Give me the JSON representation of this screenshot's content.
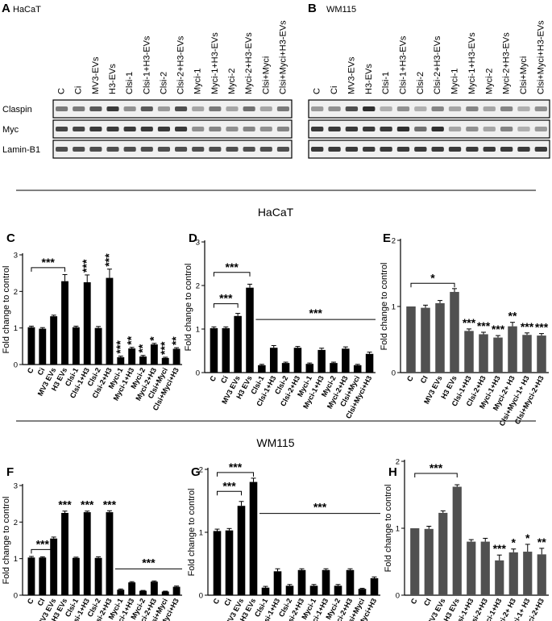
{
  "blots": {
    "A": {
      "panel_label": "A",
      "cell_line": "HaCaT",
      "lanes": [
        "C",
        "Ci",
        "MV3-EVs",
        "H3-EVs",
        "Clsi-1",
        "Clsi-1+H3-EVs",
        "Clsi-2",
        "Clsi-2+H3-EVs",
        "Myci-1",
        "Myci-1+H3-EVs",
        "Myci-2",
        "Myci-2+H3-EVs",
        "Clsi+Myci",
        "Clsi+Myci+H3-EVs"
      ],
      "rows": [
        "Claspin",
        "Myc",
        "Lamin-B1"
      ]
    },
    "B": {
      "panel_label": "B",
      "cell_line": "WM115",
      "lanes": [
        "C",
        "Ci",
        "MV3-EVs",
        "H3-EVs",
        "Clsi-1",
        "Clsi-1+H3-EVs",
        "Clsi-2",
        "Clsi-2+H3-EVs",
        "Myci-1",
        "Myci-1+H3-EVs",
        "Myci-2",
        "Myci-2+H3-EVs",
        "Clsi+Myci",
        "Clsi+Myci+H3-EVs"
      ]
    }
  },
  "sections": {
    "hacat": "HaCaT",
    "wm115": "WM115"
  },
  "colors": {
    "black_bar": "#000000",
    "gray_bar": "#505050",
    "blot_bg": "#f0f0f0",
    "band": "#1a1a1a"
  },
  "chart_data": [
    {
      "panel_label": "C",
      "type": "bar",
      "bar_color": "black",
      "ylabel": "Fold change to control",
      "ylim": [
        0,
        3
      ],
      "yticks": [
        0,
        1,
        2,
        3
      ],
      "categories": [
        "C",
        "Ci",
        "MV3 EVs",
        "H3 EVs",
        "Clsi-1",
        "Clsi-1+H3",
        "Clsi-2",
        "Clsi-2+H3",
        "Myci-1",
        "Myci-1+H3",
        "Myci-2",
        "Myci-2+H3",
        "Clsi+Myci",
        "Clsi+Myci+H3"
      ],
      "values": [
        1.02,
        0.98,
        1.32,
        2.28,
        1.02,
        2.25,
        1.0,
        2.37,
        0.2,
        0.44,
        0.22,
        0.55,
        0.18,
        0.43
      ],
      "errors": [
        0.03,
        0.03,
        0.03,
        0.18,
        0.03,
        0.2,
        0.04,
        0.24,
        0.03,
        0.03,
        0.03,
        0.03,
        0.02,
        0.03
      ],
      "bracket": {
        "from": 0,
        "to": 3,
        "label": "***",
        "y": 2.65
      },
      "stars": [
        {
          "i": 5,
          "label": "***"
        },
        {
          "i": 7,
          "label": "***"
        },
        {
          "i": 8,
          "label": "***"
        },
        {
          "i": 9,
          "label": "**"
        },
        {
          "i": 10,
          "label": "**"
        },
        {
          "i": 11,
          "label": "*"
        },
        {
          "i": 12,
          "label": "***"
        },
        {
          "i": 13,
          "label": "**"
        }
      ],
      "line": null
    },
    {
      "panel_label": "D",
      "type": "bar",
      "bar_color": "black",
      "ylabel": "Fold change to control",
      "ylim": [
        0,
        3
      ],
      "yticks": [
        0,
        1,
        2,
        3
      ],
      "categories": [
        "C",
        "Ci",
        "MV3 EVs",
        "H3 EVs",
        "Clsi-1",
        "Clsi-1+H3",
        "Clsi-2",
        "Clsi-2+H3",
        "Myci-1",
        "Myci-1+H3",
        "Myci-2",
        "Myci-2+H3",
        "Clsi+Myci",
        "Clsi+Myci+H3"
      ],
      "values": [
        1.02,
        1.02,
        1.3,
        1.95,
        0.17,
        0.57,
        0.22,
        0.57,
        0.2,
        0.52,
        0.22,
        0.55,
        0.17,
        0.43
      ],
      "errors": [
        0.03,
        0.03,
        0.06,
        0.08,
        0.02,
        0.05,
        0.02,
        0.03,
        0.02,
        0.04,
        0.02,
        0.04,
        0.02,
        0.04
      ],
      "brackets": [
        {
          "from": 0,
          "to": 2,
          "label": "***",
          "y": 1.58
        },
        {
          "from": 0,
          "to": 3,
          "label": "***",
          "y": 2.3
        }
      ],
      "stars": [],
      "line": {
        "from": 4,
        "to": 13,
        "label": "***",
        "y": 1.22
      }
    },
    {
      "panel_label": "E",
      "type": "bar",
      "bar_color": "gray",
      "ylabel": "Fold change to control",
      "ylim": [
        0,
        2
      ],
      "yticks": [
        0,
        1,
        2
      ],
      "categories": [
        "C",
        "CI",
        "MV3 EVs",
        "H3 EVs",
        "Clsi-1+H3",
        "Clsi-2+H3",
        "Myci-1+H3",
        "Myci-2+ H3",
        "Clsi+Myci-1+ H3",
        "Clsi+Myci-2+H3"
      ],
      "values": [
        1.0,
        0.98,
        1.05,
        1.22,
        0.63,
        0.58,
        0.53,
        0.7,
        0.57,
        0.56
      ],
      "errors": [
        0.0,
        0.04,
        0.04,
        0.05,
        0.03,
        0.03,
        0.03,
        0.06,
        0.03,
        0.03
      ],
      "brackets": [
        {
          "from": 0,
          "to": 3,
          "label": "*",
          "y": 1.35
        }
      ],
      "stars": [
        {
          "i": 4,
          "label": "***"
        },
        {
          "i": 5,
          "label": "***"
        },
        {
          "i": 6,
          "label": "***"
        },
        {
          "i": 7,
          "label": "**"
        },
        {
          "i": 8,
          "label": "***"
        },
        {
          "i": 9,
          "label": "***"
        }
      ],
      "line": null
    },
    {
      "panel_label": "F",
      "type": "bar",
      "bar_color": "black",
      "ylabel": "Fold change to control",
      "ylim": [
        0,
        3
      ],
      "yticks": [
        0,
        1,
        2,
        3
      ],
      "categories": [
        "C",
        "CI",
        "MV3 EVs",
        "H3 EVs",
        "Clsi-1",
        "Clsi-1+H3",
        "Clsi-2",
        "Clsi-2+H3",
        "Myci-1",
        "Myci-1+H3",
        "Myci-2",
        "Myci-2+H3",
        "Clsi+Myci",
        "Clsi+Myci+H3"
      ],
      "values": [
        1.03,
        1.03,
        1.55,
        2.25,
        1.02,
        2.27,
        1.02,
        2.27,
        0.15,
        0.35,
        0.12,
        0.37,
        0.1,
        0.23
      ],
      "errors": [
        0.03,
        0.02,
        0.04,
        0.05,
        0.02,
        0.03,
        0.03,
        0.04,
        0.02,
        0.02,
        0.01,
        0.02,
        0.01,
        0.02
      ],
      "brackets": [
        {
          "from": 0,
          "to": 2,
          "label": "***",
          "y": 1.25
        }
      ],
      "stars": [
        {
          "i": 3,
          "label": "***"
        },
        {
          "i": 5,
          "label": "***"
        },
        {
          "i": 7,
          "label": "***"
        }
      ],
      "line": {
        "from": 8,
        "to": 13,
        "label": "***",
        "y": 0.72
      }
    },
    {
      "panel_label": "G",
      "type": "bar",
      "bar_color": "black",
      "ylabel": "Fold change to control",
      "ylim": [
        0,
        2
      ],
      "yticks": [
        0,
        1,
        2
      ],
      "categories": [
        "C",
        "Ci",
        "MV3 EVs",
        "H3 EVs",
        "Clsi-1",
        "Clsi-1+H3",
        "Clsi-2",
        "Clsi-2+H3",
        "Myci-1",
        "Myci-1+H3",
        "Myci-2",
        "Myci-2+H3",
        "Clsi+Myci",
        "Clsi+Myci+H3"
      ],
      "values": [
        1.02,
        1.03,
        1.42,
        1.8,
        0.12,
        0.38,
        0.15,
        0.4,
        0.15,
        0.4,
        0.15,
        0.4,
        0.1,
        0.27
      ],
      "errors": [
        0.03,
        0.03,
        0.07,
        0.06,
        0.02,
        0.04,
        0.02,
        0.02,
        0.02,
        0.02,
        0.02,
        0.02,
        0.01,
        0.02
      ],
      "brackets": [
        {
          "from": 0,
          "to": 2,
          "label": "***",
          "y": 1.65
        },
        {
          "from": 0,
          "to": 3,
          "label": "***",
          "y": 1.95
        }
      ],
      "stars": [],
      "line": {
        "from": 4,
        "to": 13,
        "label": "***",
        "y": 1.3
      }
    },
    {
      "panel_label": "H",
      "type": "bar",
      "bar_color": "gray",
      "ylabel": "Fold change to control",
      "ylim": [
        0,
        2
      ],
      "yticks": [
        0,
        1,
        2
      ],
      "categories": [
        "C",
        "CI",
        "MV3 EVs",
        "H3 EVs",
        "Clsi-1+H3",
        "Clsi-2+H3",
        "Myci-1+H3",
        "Myci-2+ H3",
        "Clsi+Myci-1+ H3",
        "Clsi+Myci-2+H3"
      ],
      "values": [
        1.0,
        0.99,
        1.23,
        1.62,
        0.8,
        0.8,
        0.52,
        0.64,
        0.65,
        0.61
      ],
      "errors": [
        0.0,
        0.04,
        0.03,
        0.03,
        0.03,
        0.05,
        0.08,
        0.05,
        0.11,
        0.09
      ],
      "brackets": [
        {
          "from": 0,
          "to": 3,
          "label": "***",
          "y": 1.82
        }
      ],
      "stars": [
        {
          "i": 6,
          "label": "***"
        },
        {
          "i": 7,
          "label": "*"
        },
        {
          "i": 8,
          "label": "*"
        },
        {
          "i": 9,
          "label": "**"
        }
      ],
      "line": null
    }
  ]
}
